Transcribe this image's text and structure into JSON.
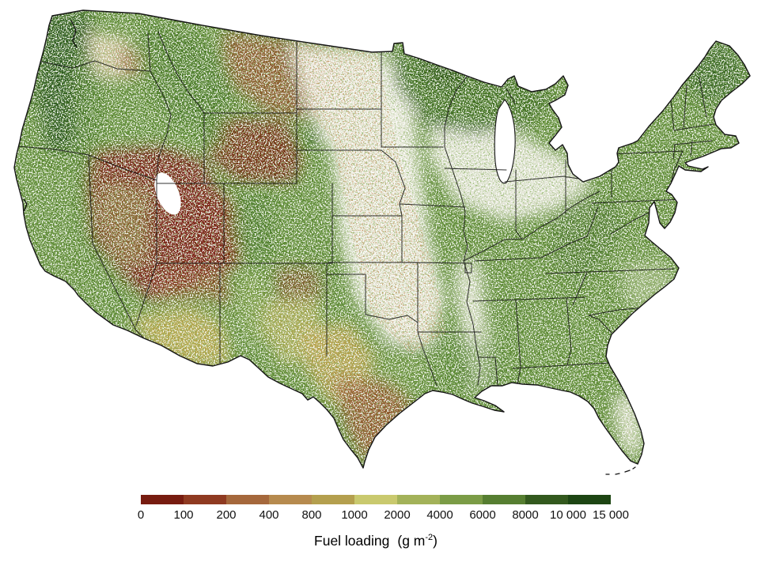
{
  "figure": {
    "type": "choropleth-raster-map",
    "region": "Conterminous United States"
  },
  "legend": {
    "title": {
      "label": "Fuel loading",
      "unit_open": "(g m",
      "exponent": "-2",
      "unit_close": ")"
    },
    "tick_labels": [
      "0",
      "100",
      "200",
      "400",
      "800",
      "1000",
      "2000",
      "4000",
      "6000",
      "8000",
      "10 000",
      "15 000"
    ],
    "segment_colors": [
      "#771c10",
      "#8f3a21",
      "#a5683c",
      "#b68a4e",
      "#b49f4e",
      "#c9c96e",
      "#a3b259",
      "#7b9c46",
      "#567e31",
      "#33591e",
      "#1d4513"
    ]
  },
  "map_palette": {
    "background_nodata": "#ffffff",
    "eastern_forest_green": "#5f8b37",
    "dark_forest_green": "#2d5a1b",
    "mountain_green": "#4a7a28",
    "olive_green": "#9fb156",
    "pale_yellow_green": "#c9c96e",
    "gold": "#bfa24e",
    "tan": "#b68a4e",
    "brown": "#96522a",
    "basin_red_brown": "#7a2113",
    "plains_white": "#f4f1ea",
    "state_border_black": "#1a1a1a"
  },
  "chart_data": {
    "type": "heatmap",
    "title": "Fuel loading  (g m-2)",
    "colorbar_bin_edges": [
      0,
      100,
      200,
      400,
      800,
      1000,
      2000,
      4000,
      6000,
      8000,
      10000,
      15000
    ],
    "colorbar_colors": [
      "#771c10",
      "#8f3a21",
      "#a5683c",
      "#b68a4e",
      "#b49f4e",
      "#c9c96e",
      "#a3b259",
      "#7b9c46",
      "#567e31",
      "#33591e",
      "#1d4513"
    ],
    "legend_position": "bottom-center",
    "spatial_pattern": "Low fuel loading (red-brown, 0-400 g m-2) across the Great Basin, interior West and southern Texas; intermediate (tan-yellow, 400-2000) in Arizona, New Mexico and west Texas; high (green, 4000-15000) along the Pacific Northwest coast, Sierra Nevada, northern Rockies, upper Midwest and the eastern United States; sparse/no data (white) across the Great Plains, Corn Belt, Mississippi valley and central Florida"
  }
}
